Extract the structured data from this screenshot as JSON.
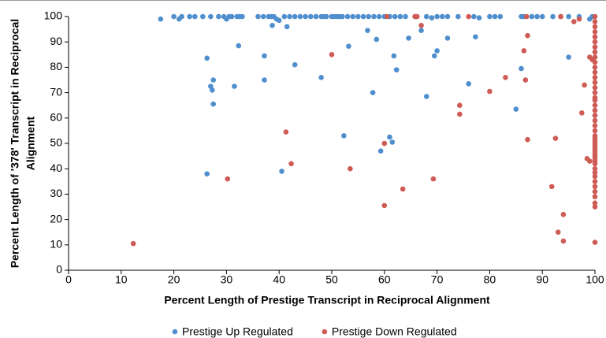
{
  "chart_data": {
    "type": "scatter",
    "x_label": "Percent Length of Prestige Transcript in Reciprocal Alignment",
    "y_label": [
      "Percent Length of '378' Transcript in Reciprocal",
      "Alignment"
    ],
    "xlim": [
      0,
      100
    ],
    "xticks": [
      0,
      10,
      20,
      30,
      40,
      50,
      60,
      70,
      80,
      90,
      100
    ],
    "ylim": [
      0,
      100
    ],
    "yticks": [
      0,
      10,
      20,
      30,
      40,
      50,
      60,
      70,
      80,
      90,
      100
    ],
    "grid": false,
    "legend": "bottom",
    "series": [
      {
        "name": "Prestige Up Regulated",
        "color": "#4f8fce",
        "x": [
          17.5,
          20,
          21,
          21.5,
          23,
          24,
          25.5,
          27,
          28.5,
          29.5,
          30,
          30.5,
          31,
          32,
          32.5,
          33,
          36,
          37,
          38,
          38.5,
          39,
          39.5,
          40,
          41,
          42,
          43,
          44,
          45,
          46,
          47,
          48,
          48.5,
          49,
          50,
          50.5,
          51,
          51.5,
          52,
          53,
          54,
          55,
          56,
          57,
          58,
          59,
          60,
          61,
          62,
          63,
          64,
          66,
          68,
          69,
          70,
          71,
          72,
          74,
          77,
          78,
          80,
          81,
          82,
          86,
          86.5,
          88,
          89,
          90,
          92,
          93.5,
          95,
          97,
          99,
          99.5,
          26.3,
          26.3,
          27,
          27.3,
          27.5,
          27.5,
          31.5,
          32.3,
          37.2,
          37.2,
          38.7,
          40.5,
          41.5,
          43,
          48,
          52.3,
          53.2,
          56.8,
          57.8,
          58.5,
          59.3,
          61,
          61.5,
          61.8,
          62.3,
          64.6,
          67,
          68,
          69.5,
          70,
          72,
          76,
          77.3,
          85,
          86,
          95
        ],
        "values": [
          99,
          100,
          99,
          100,
          100,
          100,
          100,
          100,
          100,
          100,
          99,
          100,
          100,
          100,
          100,
          100,
          100,
          100,
          100,
          100,
          100,
          99,
          98.5,
          100,
          100,
          100,
          100,
          100,
          100,
          100,
          100,
          100,
          100,
          100,
          100,
          100,
          100,
          100,
          100,
          100,
          100,
          100,
          100,
          100,
          100,
          100,
          100,
          100,
          100,
          100,
          100,
          100,
          99.5,
          100,
          100,
          100,
          100,
          100,
          99.5,
          100,
          100,
          100,
          100,
          100,
          100,
          100,
          100,
          100,
          100,
          100,
          100,
          99,
          100,
          83.6,
          38,
          72.5,
          71,
          75,
          65.5,
          72.5,
          88.5,
          84.5,
          75,
          96.5,
          39,
          96,
          81,
          76,
          53,
          88.3,
          94.5,
          70,
          91,
          47,
          52.5,
          50.5,
          84.5,
          79,
          91.5,
          94.5,
          68.5,
          84.5,
          86.5,
          91.5,
          73.5,
          92,
          63.5,
          79.5,
          84
        ]
      },
      {
        "name": "Prestige Down Regulated",
        "color": "#cf5b55",
        "x": [
          12.3,
          30.2,
          41.3,
          42.3,
          50,
          53.5,
          60,
          60,
          60.5,
          63.5,
          65.8,
          66.2,
          67,
          69.3,
          74.3,
          74.3,
          76,
          80,
          83,
          86.5,
          86.8,
          87.2,
          87.2,
          87,
          91.8,
          92.5,
          93,
          93.5,
          94,
          94,
          96,
          97,
          97.5,
          98,
          98.5,
          99,
          99.5,
          99,
          100,
          100,
          100,
          100,
          100,
          100,
          100,
          100,
          100,
          100,
          100,
          100,
          100,
          100,
          100,
          100,
          100,
          100,
          100,
          100,
          100,
          100,
          100,
          100,
          100,
          100,
          100,
          100,
          100,
          100,
          100,
          100,
          100,
          100,
          100,
          100,
          100,
          100,
          100,
          100,
          100,
          100,
          100,
          100,
          100,
          100
        ],
        "values": [
          10.5,
          36,
          54.5,
          42,
          85,
          40,
          25.5,
          50,
          100,
          32,
          100,
          100,
          96.5,
          36,
          65,
          61.5,
          100,
          70.5,
          76,
          86.5,
          75,
          51.5,
          92.5,
          100,
          33,
          52,
          15,
          100,
          22,
          11.5,
          98,
          99,
          62,
          73,
          44,
          43,
          83,
          84,
          11,
          25,
          26.5,
          29,
          31,
          33,
          35,
          37,
          38.5,
          40,
          42,
          43,
          44,
          45,
          46,
          47,
          48,
          49,
          50,
          51,
          52,
          53,
          55,
          57,
          59,
          61,
          63,
          65,
          67,
          68,
          70,
          72,
          74,
          76,
          78,
          80,
          82,
          84,
          86,
          88,
          90,
          92,
          94,
          96,
          98,
          100
        ]
      }
    ]
  }
}
